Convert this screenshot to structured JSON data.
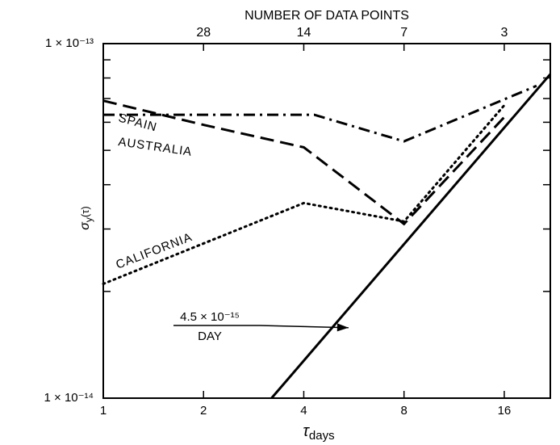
{
  "chart_data": {
    "type": "line",
    "title": "",
    "xlabel": "τdays",
    "xlabel_parts": {
      "main": "τ",
      "sub": "days"
    },
    "ylabel": "σy(τ)",
    "ylabel_parts": {
      "main": "σ",
      "sub": "y",
      "paren": "(τ)"
    },
    "x_scale": "log2",
    "y_scale": "log",
    "xlim": [
      1,
      22
    ],
    "ylim": [
      1e-14,
      1e-13
    ],
    "x_ticks": [
      1,
      2,
      4,
      8,
      16
    ],
    "x_tick_labels": [
      "1",
      "2",
      "4",
      "8",
      "16"
    ],
    "y_tick_labels": {
      "bottom": "1 × 10⁻¹⁴",
      "top": "1 × 10⁻¹³"
    },
    "top_axis": {
      "title": "NUMBER OF DATA POINTS",
      "ticks": [
        2,
        4,
        8,
        16
      ],
      "tick_labels": [
        "28",
        "14",
        "7",
        "3"
      ]
    },
    "grid": false,
    "legend": "inline labels",
    "series": [
      {
        "name": "SPAIN",
        "style": "dashed",
        "x": [
          1,
          2,
          4,
          8,
          16
        ],
        "y": [
          6.9e-14,
          5.9e-14,
          5.1e-14,
          3.1e-14,
          6.2e-14
        ]
      },
      {
        "name": "AUSTRALIA",
        "style": "dashdot",
        "x": [
          1,
          4.3,
          8,
          20
        ],
        "y": [
          6.3e-14,
          6.3e-14,
          5.3e-14,
          7.6e-14
        ]
      },
      {
        "name": "CALIFORNIA",
        "style": "dotted",
        "x": [
          1,
          4,
          8,
          16
        ],
        "y": [
          2.1e-14,
          3.55e-14,
          3.15e-14,
          6.7e-14
        ]
      },
      {
        "name": "",
        "style": "solid",
        "x": [
          3.2,
          22
        ],
        "y": [
          1e-14,
          8.2e-14
        ]
      }
    ],
    "annotations": [
      {
        "text_numerator": "4.5 × 10⁻¹⁵",
        "text_denominator": "DAY",
        "points_to": [
          5.45,
          1.58e-14
        ]
      }
    ]
  }
}
